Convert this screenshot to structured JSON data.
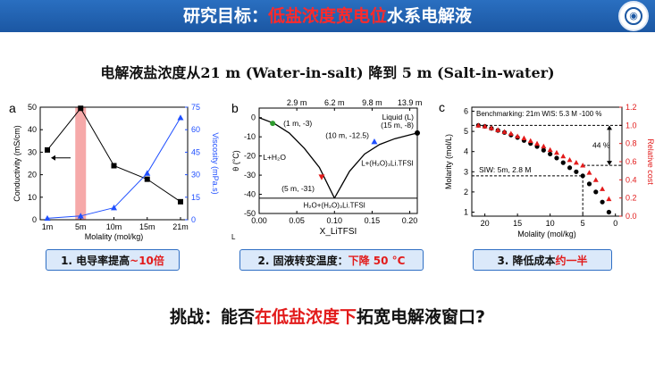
{
  "header": {
    "prefix": "研究目标：",
    "highlight": "低盐浓度宽电位",
    "suffix": "水系电解液"
  },
  "subtitle": "电解液盐浓度从21 m (Water-in-salt) 降到 5 m (Salt-in-water)",
  "captions": {
    "a": {
      "prefix": "1. 电导率提高",
      "highlight": "~10倍"
    },
    "b": {
      "prefix": "2. 固液转变温度：",
      "highlight": "下降 50 °C"
    },
    "c": {
      "prefix": "3. 降低成本",
      "highlight": "约一半"
    }
  },
  "bottom": {
    "prefix": "挑战：能否",
    "highlight": "在低盐浓度下",
    "suffix": "拓宽电解液窗口?"
  },
  "colors": {
    "header": "#1b57a3",
    "highlight_red": "#e21b1b",
    "caption_bg": "#dbe9fa",
    "series_blue": "#1f4fff"
  },
  "chart_data": [
    {
      "panel": "a",
      "type": "line",
      "categories": [
        "1m",
        "5m",
        "10m",
        "15m",
        "21m"
      ],
      "xlabel": "Molality (mol/kg)",
      "series": [
        {
          "name": "Conductivity (mS/cm)",
          "axis": "left",
          "values": [
            31,
            49.5,
            24,
            18,
            8
          ],
          "color": "#000000",
          "marker": "square"
        },
        {
          "name": "Viscosity (mPa.s)",
          "axis": "right",
          "values": [
            1,
            2.5,
            8,
            31,
            68
          ],
          "color": "#1f4fff",
          "marker": "triangle"
        }
      ],
      "yleft": {
        "label": "Conductivity (mS/cm)",
        "ylim": [
          0,
          50
        ],
        "ticks": [
          "0",
          "10",
          "20",
          "30",
          "40",
          "50"
        ]
      },
      "yright": {
        "label": "Viscosity (mPa.s)",
        "ylim": [
          0,
          75
        ],
        "ticks": [
          "0",
          "15",
          "30",
          "45",
          "60",
          "75"
        ]
      },
      "highlight_category": "5m"
    },
    {
      "panel": "b",
      "type": "line",
      "xlabel": "X_LiTFSI",
      "ylabel": "θ (°C)",
      "xlim": [
        0,
        0.21
      ],
      "ylim": [
        -50,
        5
      ],
      "xticks": [
        "0.00",
        "0.05",
        "0.10",
        "0.15",
        "0.20"
      ],
      "yticks": [
        "0",
        "-10",
        "-20",
        "-30",
        "-40",
        "-50"
      ],
      "top_ticks": [
        "2.9 m",
        "6.2 m",
        "9.8 m",
        "13.9 m"
      ],
      "top_tick_x": [
        0.05,
        0.1,
        0.15,
        0.2
      ],
      "liquidus_left": {
        "x": [
          0,
          0.02,
          0.04,
          0.06,
          0.08,
          0.1
        ],
        "y": [
          0,
          -3,
          -8,
          -16,
          -26,
          -42
        ]
      },
      "liquidus_right": {
        "x": [
          0.1,
          0.12,
          0.14,
          0.16,
          0.18,
          0.2,
          0.21
        ],
        "y": [
          -42,
          -28,
          -19,
          -14,
          -11,
          -9,
          -8
        ]
      },
      "eutectic_y": -42,
      "points": [
        {
          "label": "(1 m, -3)",
          "x": 0.018,
          "y": -3,
          "color": "#2e9b2e",
          "marker": "circle"
        },
        {
          "label": "(5 m, -31)",
          "x": 0.083,
          "y": -31,
          "color": "#e21b1b",
          "marker": "triangle-down"
        },
        {
          "label": "(10 m, -12.5)",
          "x": 0.153,
          "y": -12.5,
          "color": "#1f4fff",
          "marker": "triangle"
        },
        {
          "label": "(15 m, -8)",
          "x": 0.21,
          "y": -8,
          "color": "#000000",
          "marker": "circle"
        }
      ],
      "regions": [
        "Liquid (L)",
        "L+H₂O",
        "L+(H₂O)₃Li.TFSI",
        "H₂O+(H₂O)₃Li.TFSI"
      ]
    },
    {
      "panel": "c",
      "type": "scatter",
      "xlabel": "Molality (mol/kg)",
      "xlim": [
        22,
        -1
      ],
      "xticks": [
        "20",
        "15",
        "10",
        "5",
        "0"
      ],
      "yleft": {
        "label": "Molarity (mol/L)",
        "ylim": [
          0.8,
          6.2
        ],
        "ticks": [
          "1",
          "2",
          "3",
          "4",
          "5",
          "6"
        ]
      },
      "yright": {
        "label": "Relative cost",
        "ylim": [
          0,
          1.2
        ],
        "ticks": [
          "0.0",
          "0.2",
          "0.4",
          "0.6",
          "0.8",
          "1.0",
          "1.2"
        ]
      },
      "series": [
        {
          "name": "Molarity",
          "axis": "left",
          "color": "#000000",
          "marker": "circle",
          "x": [
            21,
            20,
            19,
            18,
            17,
            16,
            15,
            14,
            13,
            12,
            11,
            10,
            9,
            8,
            7,
            6,
            5,
            4,
            3,
            2,
            1
          ],
          "values": [
            5.3,
            5.25,
            5.15,
            5.05,
            4.95,
            4.82,
            4.7,
            4.55,
            4.4,
            4.25,
            4.07,
            3.88,
            3.68,
            3.45,
            3.2,
            3.0,
            2.8,
            2.4,
            2.0,
            1.5,
            1.0
          ]
        },
        {
          "name": "Relative cost",
          "axis": "right",
          "color": "#e21b1b",
          "marker": "triangle",
          "x": [
            21,
            20,
            19,
            18,
            17,
            16,
            15,
            14,
            13,
            12,
            11,
            10,
            9,
            8,
            7,
            6,
            5,
            4,
            3,
            2,
            1
          ],
          "values": [
            1.0,
            0.99,
            0.97,
            0.95,
            0.93,
            0.91,
            0.88,
            0.86,
            0.83,
            0.8,
            0.77,
            0.73,
            0.7,
            0.66,
            0.62,
            0.59,
            0.56,
            0.48,
            0.4,
            0.3,
            0.19
          ]
        }
      ],
      "annotations": [
        "Benchmarking:  21m WIS:  5.3 M -100 %",
        "44 %",
        "SIW: 5m, 2.8 M"
      ]
    }
  ]
}
